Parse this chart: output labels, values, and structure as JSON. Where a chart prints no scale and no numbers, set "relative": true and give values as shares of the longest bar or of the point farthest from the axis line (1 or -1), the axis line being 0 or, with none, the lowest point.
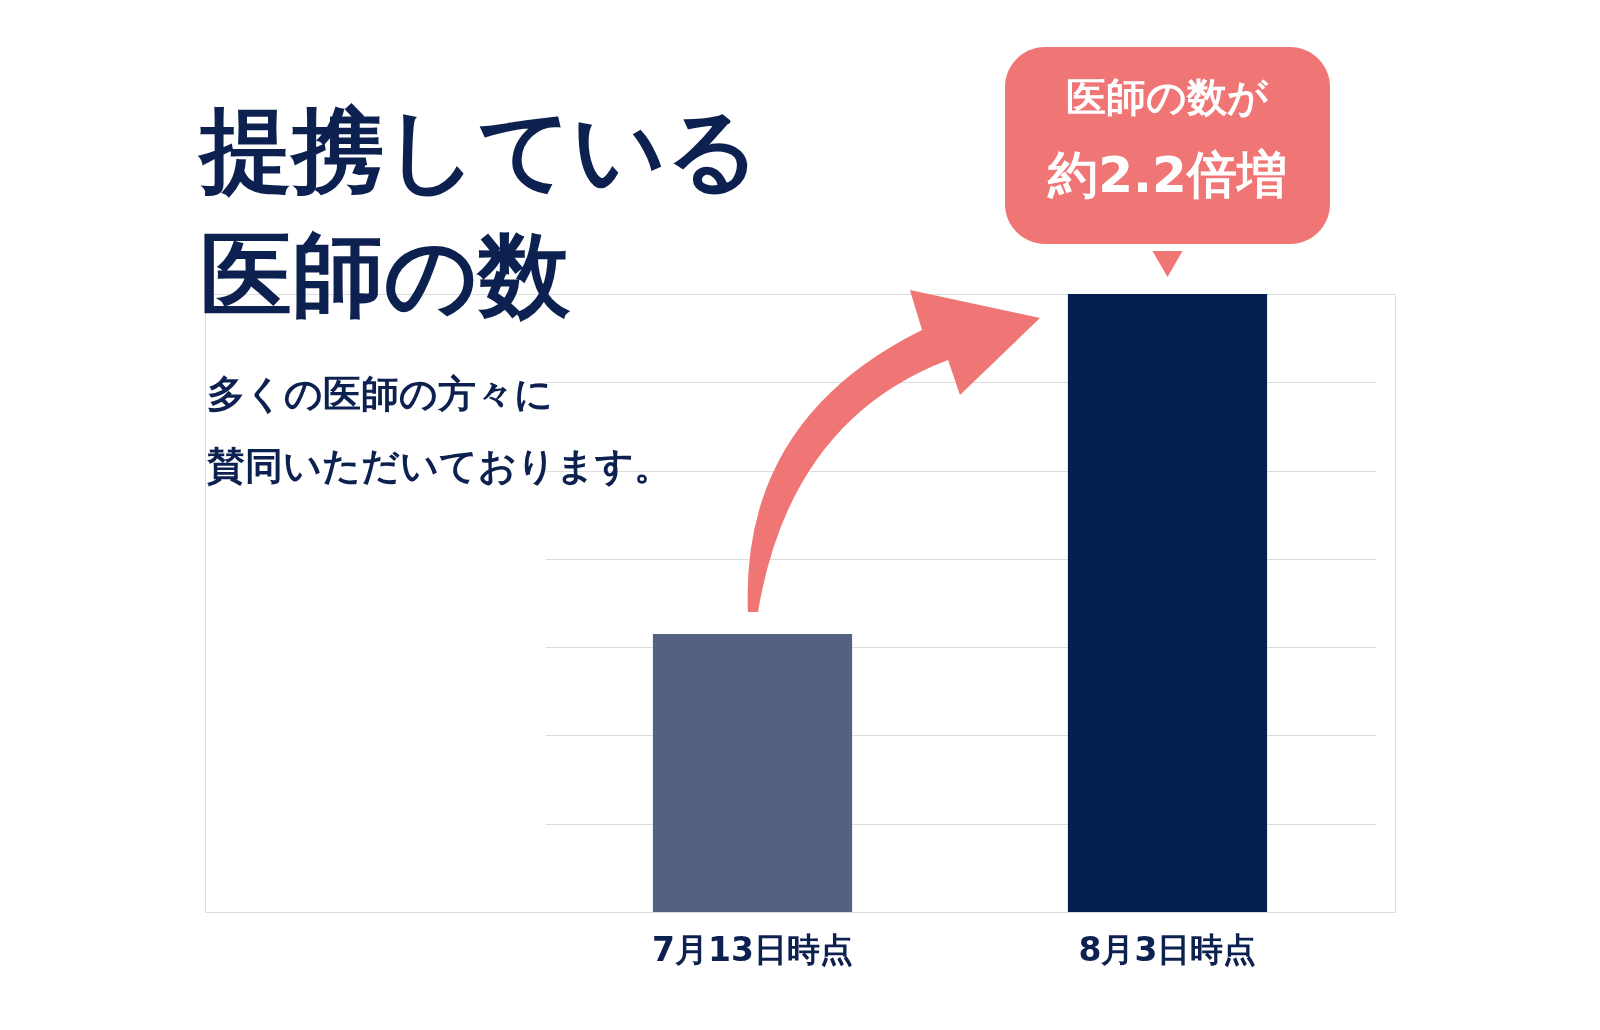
{
  "chart_data": {
    "type": "bar",
    "title": [
      "提携している",
      "医師の数"
    ],
    "subtitle": [
      "多くの医師の方々に",
      "賛同いただいております。"
    ],
    "categories": [
      "7月13日時点",
      "8月3日時点"
    ],
    "values": [
      0.45,
      1
    ],
    "colors": [
      "#536283",
      "#041f52"
    ],
    "relative": true,
    "grid": "y",
    "annotations": [
      "医師の数が",
      {
        "text": "約2.2倍増",
        "x": "8月3日時点",
        "y": 1
      }
    ]
  }
}
